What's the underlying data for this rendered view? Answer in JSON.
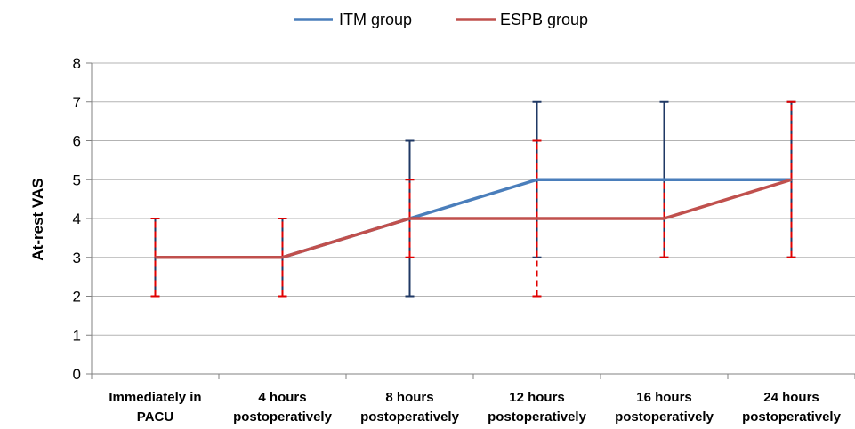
{
  "chart_data": {
    "type": "line",
    "categories": [
      [
        "Immediately in",
        "PACU"
      ],
      [
        "4 hours",
        "postoperatively"
      ],
      [
        "8 hours",
        "postoperatively"
      ],
      [
        "12 hours",
        "postoperatively"
      ],
      [
        "16 hours",
        "postoperatively"
      ],
      [
        "24 hours",
        "postoperatively"
      ]
    ],
    "ylabel": "At-rest VAS",
    "ylim": [
      0,
      8
    ],
    "yticks": [
      0,
      1,
      2,
      3,
      4,
      5,
      6,
      7,
      8
    ],
    "grid": true,
    "legend_position": "top-center",
    "series": [
      {
        "name": "ITM group",
        "color": "#4a7ebb",
        "errorbar_color": "#1f3864",
        "values": [
          3,
          3,
          4,
          5,
          5,
          5
        ],
        "lower": [
          2,
          2,
          2,
          3,
          3,
          3
        ],
        "upper": [
          4,
          4,
          6,
          7,
          7,
          7
        ]
      },
      {
        "name": "ESPB group",
        "color": "#c0504d",
        "errorbar_color": "#e00000",
        "values": [
          3,
          3,
          4,
          4,
          4,
          5
        ],
        "lower": [
          2,
          2,
          3,
          2,
          3,
          3
        ],
        "upper": [
          4,
          4,
          5,
          6,
          5,
          7
        ]
      }
    ]
  }
}
